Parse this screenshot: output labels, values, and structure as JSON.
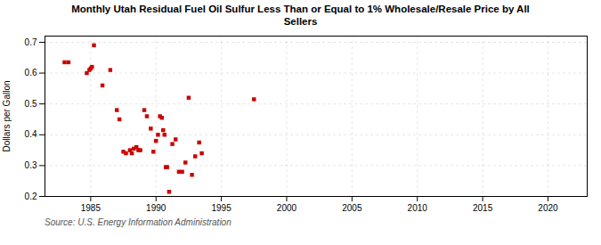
{
  "chart_data": {
    "type": "scatter",
    "title": "Monthly Utah Residual Fuel Oil Sulfur Less Than or Equal to 1% Wholesale/Resale Price by All\nSellers",
    "caption": "Source: U.S. Energy Information Administration",
    "ylabel": "Dollars per Gallon",
    "color": "#cc0000",
    "marker": "square",
    "grid": true,
    "xlim": [
      1981.5,
      2023
    ],
    "ylim": [
      0.2,
      0.72
    ],
    "xticks": [
      1985,
      1990,
      1995,
      2000,
      2005,
      2010,
      2015,
      2020
    ],
    "yticks": [
      0.2,
      0.3,
      0.4,
      0.5,
      0.6,
      0.7
    ],
    "x": [
      1983.0,
      1983.3,
      1984.7,
      1984.9,
      1985.0,
      1985.1,
      1985.25,
      1985.9,
      1986.5,
      1987.0,
      1987.2,
      1987.5,
      1987.7,
      1988.0,
      1988.15,
      1988.3,
      1988.5,
      1988.65,
      1988.8,
      1989.1,
      1989.3,
      1989.6,
      1989.8,
      1990.0,
      1990.15,
      1990.3,
      1990.45,
      1990.55,
      1990.65,
      1990.75,
      1990.85,
      1991.0,
      1991.25,
      1991.5,
      1991.75,
      1992.0,
      1992.25,
      1992.5,
      1992.75,
      1993.0,
      1993.3,
      1993.5,
      1997.5
    ],
    "values": [
      0.635,
      0.635,
      0.6,
      0.61,
      0.615,
      0.62,
      0.69,
      0.56,
      0.61,
      0.48,
      0.45,
      0.345,
      0.34,
      0.35,
      0.34,
      0.355,
      0.36,
      0.35,
      0.35,
      0.48,
      0.46,
      0.42,
      0.345,
      0.38,
      0.4,
      0.46,
      0.455,
      0.415,
      0.4,
      0.295,
      0.295,
      0.215,
      0.37,
      0.385,
      0.28,
      0.28,
      0.31,
      0.52,
      0.27,
      0.33,
      0.375,
      0.34,
      0.515
    ]
  }
}
